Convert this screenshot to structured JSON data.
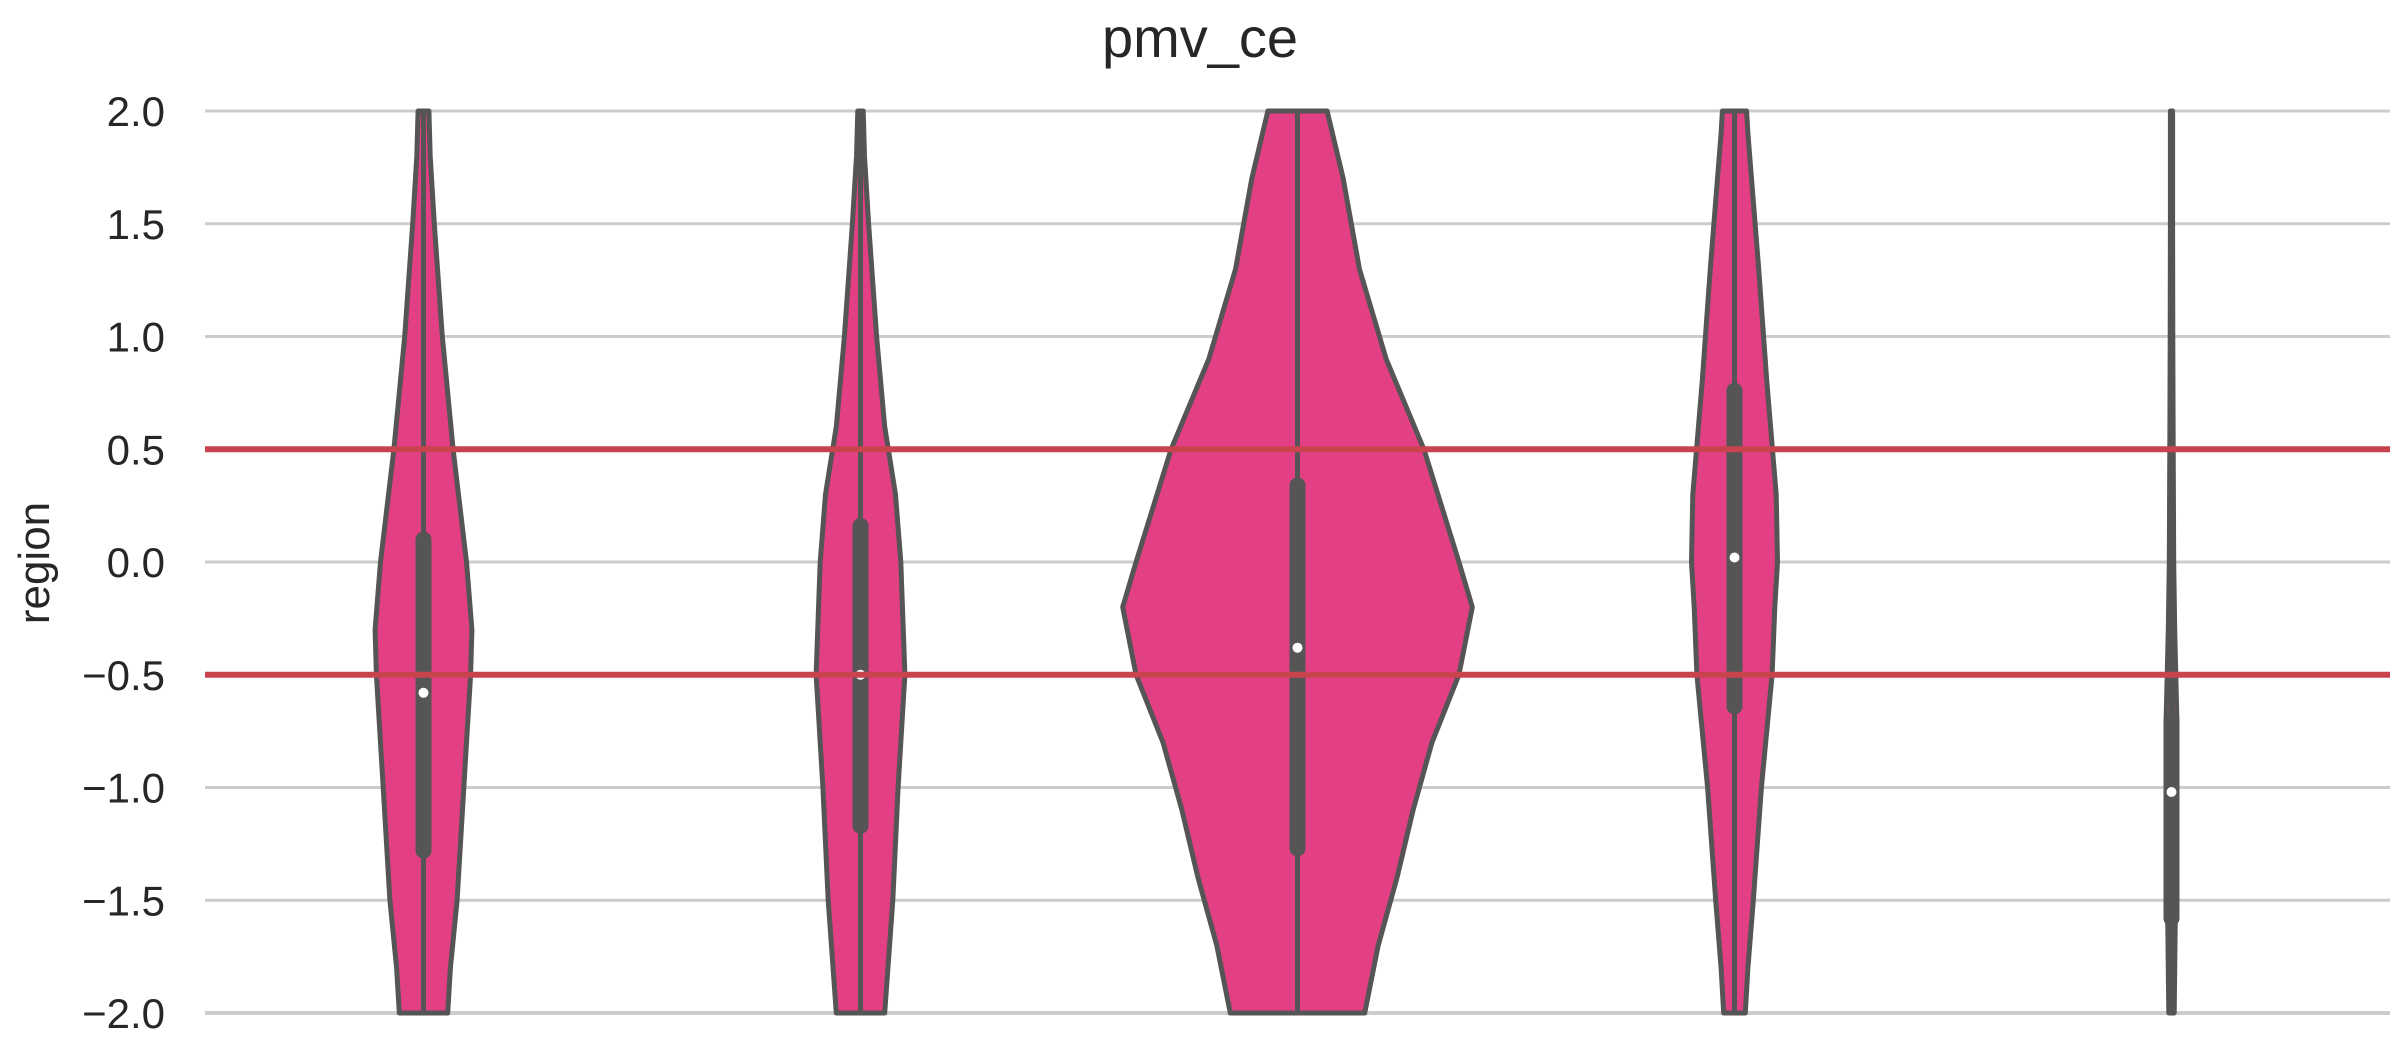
{
  "chart_data": {
    "type": "violin",
    "title": "pmv_ce",
    "xlabel": "",
    "ylabel": "region",
    "ylim": [
      -2.0,
      2.0
    ],
    "yticks": [
      "2.0",
      "1.5",
      "1.0",
      "0.5",
      "0.0",
      "−0.5",
      "−1.0",
      "−1.5",
      "−2.0"
    ],
    "ytick_values": [
      2.0,
      1.5,
      1.0,
      0.5,
      0.0,
      -0.5,
      -1.0,
      -1.5,
      -2.0
    ],
    "grid": "horizontal",
    "reference_lines": [
      0.5,
      -0.5
    ],
    "colors": {
      "violin_fill": "#e33f84",
      "violin_edge": "#555555",
      "box": "#555555",
      "median_dot": "#ffffff",
      "reference_line": "#c8434e",
      "grid": "#cccccc"
    },
    "violins": [
      {
        "median": -0.58,
        "q1": -1.28,
        "q3": 0.1,
        "density": [
          [
            -2.0,
            0.09
          ],
          [
            -1.8,
            0.1
          ],
          [
            -1.5,
            0.125
          ],
          [
            -1.0,
            0.15
          ],
          [
            -0.5,
            0.175
          ],
          [
            -0.3,
            0.18
          ],
          [
            0.0,
            0.16
          ],
          [
            0.5,
            0.11
          ],
          [
            1.0,
            0.07
          ],
          [
            1.5,
            0.04
          ],
          [
            1.8,
            0.025
          ],
          [
            2.0,
            0.02
          ]
        ]
      },
      {
        "median": -0.5,
        "q1": -1.17,
        "q3": 0.16,
        "density": [
          [
            -2.0,
            0.09
          ],
          [
            -1.5,
            0.12
          ],
          [
            -1.0,
            0.14
          ],
          [
            -0.6,
            0.16
          ],
          [
            -0.5,
            0.165
          ],
          [
            0.0,
            0.15
          ],
          [
            0.3,
            0.13
          ],
          [
            0.6,
            0.09
          ],
          [
            1.0,
            0.06
          ],
          [
            1.5,
            0.03
          ],
          [
            1.8,
            0.015
          ],
          [
            2.0,
            0.01
          ]
        ]
      },
      {
        "median": -0.38,
        "q1": -1.27,
        "q3": 0.34,
        "density": [
          [
            -2.0,
            0.25
          ],
          [
            -1.7,
            0.3
          ],
          [
            -1.4,
            0.37
          ],
          [
            -1.1,
            0.43
          ],
          [
            -0.8,
            0.5
          ],
          [
            -0.5,
            0.6
          ],
          [
            -0.2,
            0.65
          ],
          [
            0.0,
            0.6
          ],
          [
            0.5,
            0.47
          ],
          [
            0.9,
            0.33
          ],
          [
            1.3,
            0.23
          ],
          [
            1.7,
            0.17
          ],
          [
            2.0,
            0.11
          ]
        ]
      },
      {
        "median": 0.02,
        "q1": -0.64,
        "q3": 0.76,
        "density": [
          [
            -2.0,
            0.04
          ],
          [
            -1.8,
            0.05
          ],
          [
            -1.5,
            0.07
          ],
          [
            -1.0,
            0.1
          ],
          [
            -0.5,
            0.14
          ],
          [
            -0.2,
            0.15
          ],
          [
            0.0,
            0.16
          ],
          [
            0.3,
            0.155
          ],
          [
            0.8,
            0.12
          ],
          [
            1.3,
            0.09
          ],
          [
            1.6,
            0.07
          ],
          [
            1.9,
            0.05
          ],
          [
            2.0,
            0.045
          ]
        ]
      },
      {
        "median": -1.02,
        "q1": -1.58,
        "q3": -0.7,
        "density": [
          [
            -2.0,
            0.01
          ],
          [
            -1.5,
            0.015
          ],
          [
            -1.0,
            0.018
          ],
          [
            -0.7,
            0.02
          ],
          [
            -0.3,
            0.012
          ],
          [
            0.0,
            0.008
          ],
          [
            0.6,
            0.006
          ],
          [
            1.0,
            0.005
          ],
          [
            1.5,
            0.004
          ],
          [
            2.0,
            0.004
          ]
        ]
      }
    ]
  }
}
